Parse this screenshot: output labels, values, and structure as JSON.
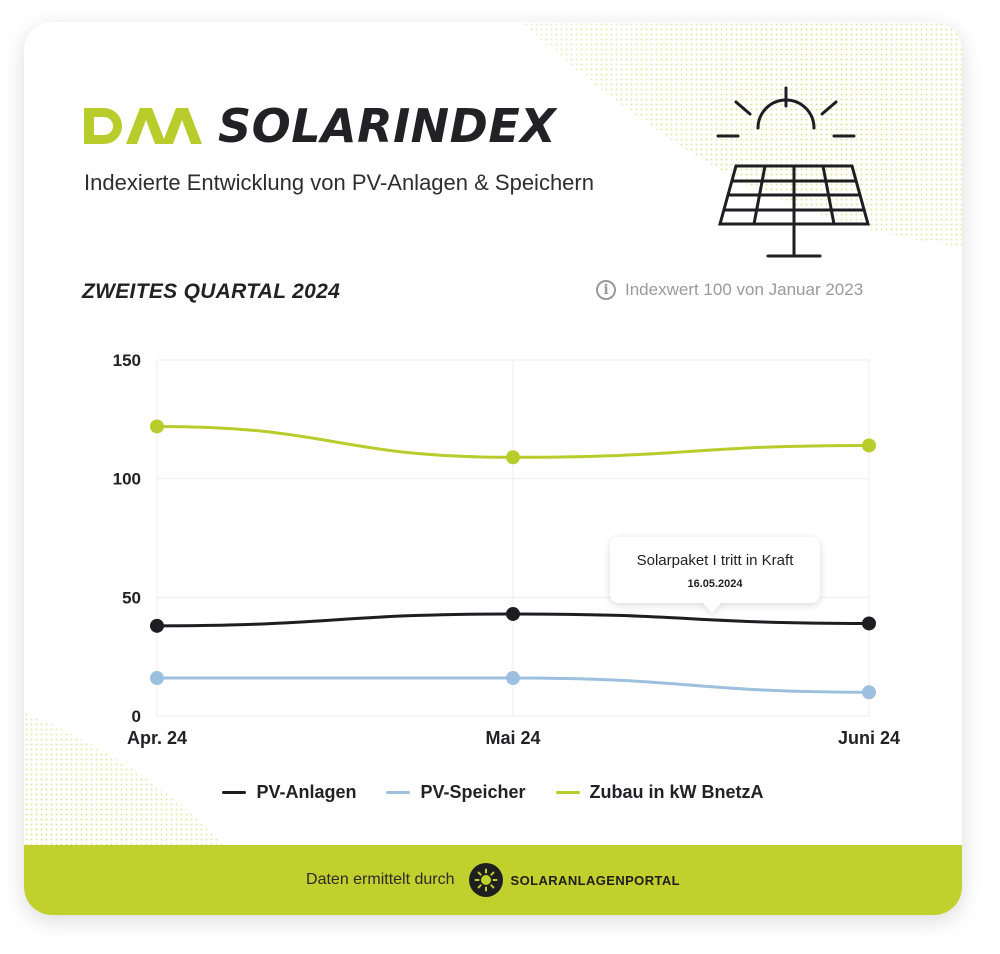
{
  "header": {
    "brand_name": "SOLARINDEX",
    "subtitle": "Indexierte Entwicklung von PV-Anlagen & Speichern"
  },
  "section": {
    "title": "ZWEITES QUARTAL 2024",
    "note": "Indexwert 100 von Januar 2023"
  },
  "chart_data": {
    "type": "line",
    "categories": [
      "Apr. 24",
      "Mai 24",
      "Juni 24"
    ],
    "series": [
      {
        "name": "PV-Anlagen",
        "values": [
          38,
          43,
          39
        ],
        "color": "#1e1e22"
      },
      {
        "name": "PV-Speicher",
        "values": [
          16,
          16,
          10
        ],
        "color": "#9dc0de"
      },
      {
        "name": "Zubau in kW BnetzA",
        "values": [
          122,
          109,
          114
        ],
        "color": "#b8cc2c"
      }
    ],
    "ylim": [
      0,
      150
    ],
    "yticks": [
      0,
      50,
      100,
      150
    ],
    "grid": true,
    "legend_position": "bottom",
    "annotation": {
      "text": "Solarpaket I tritt in Kraft",
      "date": "16.05.2024"
    }
  },
  "footer": {
    "text": "Daten ermittelt durch",
    "partner": "SOLARANLAGENPORTAL"
  },
  "colors": {
    "accent": "#c1d02d",
    "text": "#222226",
    "muted": "#9a9a9a"
  }
}
